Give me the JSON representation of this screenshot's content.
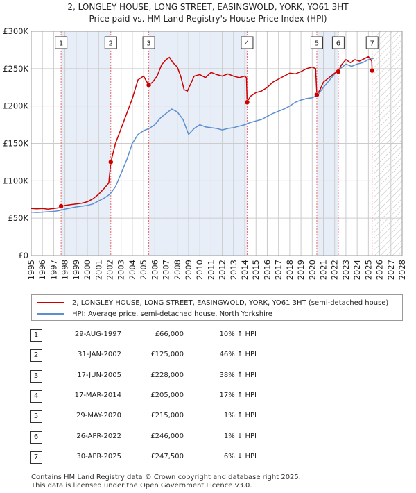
{
  "title_line1": "2, LONGLEY HOUSE, LONG STREET, EASINGWOLD, YORK, YO61 3HT",
  "title_line2": "Price paid vs. HM Land Registry's House Price Index (HPI)",
  "colors": {
    "property": "#cc0000",
    "hpi": "#5b8fd0",
    "band": "#e8eef8",
    "marker_line": "#ee6666",
    "grid": "#cccccc"
  },
  "chart_data": {
    "type": "line",
    "xlim": [
      1995,
      2028
    ],
    "ylim": [
      0,
      300000
    ],
    "x_ticks": [
      "1995",
      "1996",
      "1997",
      "1998",
      "1999",
      "2000",
      "2001",
      "2002",
      "2003",
      "2004",
      "2005",
      "2006",
      "2007",
      "2008",
      "2009",
      "2010",
      "2011",
      "2012",
      "2013",
      "2014",
      "2015",
      "2016",
      "2017",
      "2018",
      "2019",
      "2020",
      "2021",
      "2022",
      "2023",
      "2024",
      "2025",
      "2026",
      "2027",
      "2028"
    ],
    "y_ticks": [
      {
        "value": 0,
        "label": "£0"
      },
      {
        "value": 50000,
        "label": "£50K"
      },
      {
        "value": 100000,
        "label": "£100K"
      },
      {
        "value": 150000,
        "label": "£150K"
      },
      {
        "value": 200000,
        "label": "£200K"
      },
      {
        "value": 250000,
        "label": "£250K"
      },
      {
        "value": 300000,
        "label": "£300K"
      }
    ],
    "shaded_bands": [
      [
        1997.66,
        2002.08
      ],
      [
        2005.46,
        2014.21
      ],
      [
        2020.41,
        2022.32
      ]
    ],
    "hatched_from": 2025.5,
    "series": [
      {
        "name": "2, LONGLEY HOUSE, LONG STREET, EASINGWOLD, YORK, YO61 3HT (semi-detached house)",
        "x": [
          1995.0,
          1995.5,
          1996.0,
          1996.5,
          1997.0,
          1997.5,
          1997.66,
          1998.0,
          1998.5,
          1999.0,
          1999.5,
          2000.0,
          2000.5,
          2001.0,
          2001.5,
          2001.9,
          2002.08,
          2002.5,
          2003.0,
          2003.5,
          2004.0,
          2004.5,
          2005.0,
          2005.3,
          2005.46,
          2005.8,
          2006.2,
          2006.6,
          2007.0,
          2007.3,
          2007.6,
          2008.0,
          2008.3,
          2008.6,
          2008.9,
          2009.2,
          2009.5,
          2010.0,
          2010.5,
          2011.0,
          2011.5,
          2012.0,
          2012.5,
          2013.0,
          2013.5,
          2014.0,
          2014.15,
          2014.21,
          2014.5,
          2015.0,
          2015.5,
          2016.0,
          2016.5,
          2017.0,
          2017.5,
          2018.0,
          2018.5,
          2019.0,
          2019.5,
          2020.0,
          2020.3,
          2020.41,
          2020.7,
          2021.0,
          2021.5,
          2022.0,
          2022.32,
          2022.6,
          2023.0,
          2023.4,
          2023.8,
          2024.2,
          2024.6,
          2025.0,
          2025.3,
          2025.33
        ],
        "values": [
          63000,
          62500,
          63000,
          62000,
          63000,
          64000,
          66000,
          67000,
          68000,
          69000,
          70000,
          72000,
          76000,
          82000,
          90000,
          97000,
          125000,
          150000,
          170000,
          190000,
          210000,
          235000,
          240000,
          232000,
          228000,
          232000,
          240000,
          255000,
          262000,
          265000,
          258000,
          252000,
          240000,
          222000,
          220000,
          230000,
          240000,
          242000,
          238000,
          245000,
          242000,
          240000,
          243000,
          240000,
          238000,
          240000,
          238000,
          205000,
          213000,
          218000,
          220000,
          225000,
          232000,
          236000,
          240000,
          244000,
          243000,
          246000,
          250000,
          252000,
          250000,
          215000,
          222000,
          232000,
          238000,
          244000,
          246000,
          255000,
          262000,
          258000,
          262000,
          260000,
          263000,
          266000,
          260000,
          247500
        ]
      },
      {
        "name": "HPI: Average price, semi-detached house, North Yorkshire",
        "x": [
          1995.0,
          1995.5,
          1996.0,
          1996.5,
          1997.0,
          1997.5,
          1998.0,
          1998.5,
          1999.0,
          1999.5,
          2000.0,
          2000.5,
          2001.0,
          2001.5,
          2002.0,
          2002.5,
          2003.0,
          2003.5,
          2004.0,
          2004.5,
          2005.0,
          2005.5,
          2006.0,
          2006.5,
          2007.0,
          2007.5,
          2008.0,
          2008.5,
          2009.0,
          2009.5,
          2010.0,
          2010.5,
          2011.0,
          2011.5,
          2012.0,
          2012.5,
          2013.0,
          2013.5,
          2014.0,
          2014.5,
          2015.0,
          2015.5,
          2016.0,
          2016.5,
          2017.0,
          2017.5,
          2018.0,
          2018.5,
          2019.0,
          2019.5,
          2020.0,
          2020.5,
          2021.0,
          2021.5,
          2022.0,
          2022.5,
          2023.0,
          2023.5,
          2024.0,
          2024.5,
          2025.0,
          2025.5
        ],
        "values": [
          58000,
          57500,
          58000,
          58500,
          59000,
          60000,
          62000,
          63500,
          65000,
          66000,
          67000,
          69000,
          73000,
          77000,
          82000,
          92000,
          110000,
          128000,
          150000,
          162000,
          167000,
          170000,
          175000,
          184000,
          190000,
          196000,
          192000,
          182000,
          162000,
          170000,
          175000,
          172000,
          171000,
          170000,
          168000,
          170000,
          171000,
          173000,
          175000,
          178000,
          180000,
          182000,
          186000,
          190000,
          193000,
          196000,
          200000,
          205000,
          208000,
          210000,
          211000,
          215000,
          225000,
          234000,
          243000,
          250000,
          256000,
          253000,
          256000,
          258000,
          262000,
          264000
        ]
      }
    ],
    "sales": [
      {
        "label": "1",
        "x": 1997.66,
        "value": 66000
      },
      {
        "label": "2",
        "x": 2002.08,
        "value": 125000
      },
      {
        "label": "3",
        "x": 2005.46,
        "value": 228000
      },
      {
        "label": "4",
        "x": 2014.21,
        "value": 205000
      },
      {
        "label": "5",
        "x": 2020.41,
        "value": 215000
      },
      {
        "label": "6",
        "x": 2022.32,
        "value": 246000
      },
      {
        "label": "7",
        "x": 2025.33,
        "value": 247500
      }
    ]
  },
  "legend": {
    "property_label": "2, LONGLEY HOUSE, LONG STREET, EASINGWOLD, YORK, YO61 3HT (semi-detached house)",
    "hpi_label": "HPI: Average price, semi-detached house, North Yorkshire"
  },
  "table": [
    {
      "num": "1",
      "date": "29-AUG-1997",
      "price": "£66,000",
      "pct": "10% ↑ HPI"
    },
    {
      "num": "2",
      "date": "31-JAN-2002",
      "price": "£125,000",
      "pct": "46% ↑ HPI"
    },
    {
      "num": "3",
      "date": "17-JUN-2005",
      "price": "£228,000",
      "pct": "38% ↑ HPI"
    },
    {
      "num": "4",
      "date": "17-MAR-2014",
      "price": "£205,000",
      "pct": "17% ↑ HPI"
    },
    {
      "num": "5",
      "date": "29-MAY-2020",
      "price": "£215,000",
      "pct": "1% ↑ HPI"
    },
    {
      "num": "6",
      "date": "26-APR-2022",
      "price": "£246,000",
      "pct": "1% ↓ HPI"
    },
    {
      "num": "7",
      "date": "30-APR-2025",
      "price": "£247,500",
      "pct": "6% ↓ HPI"
    }
  ],
  "footer": {
    "line1": "Contains HM Land Registry data © Crown copyright and database right 2025.",
    "line2": "This data is licensed under the Open Government Licence v3.0."
  }
}
